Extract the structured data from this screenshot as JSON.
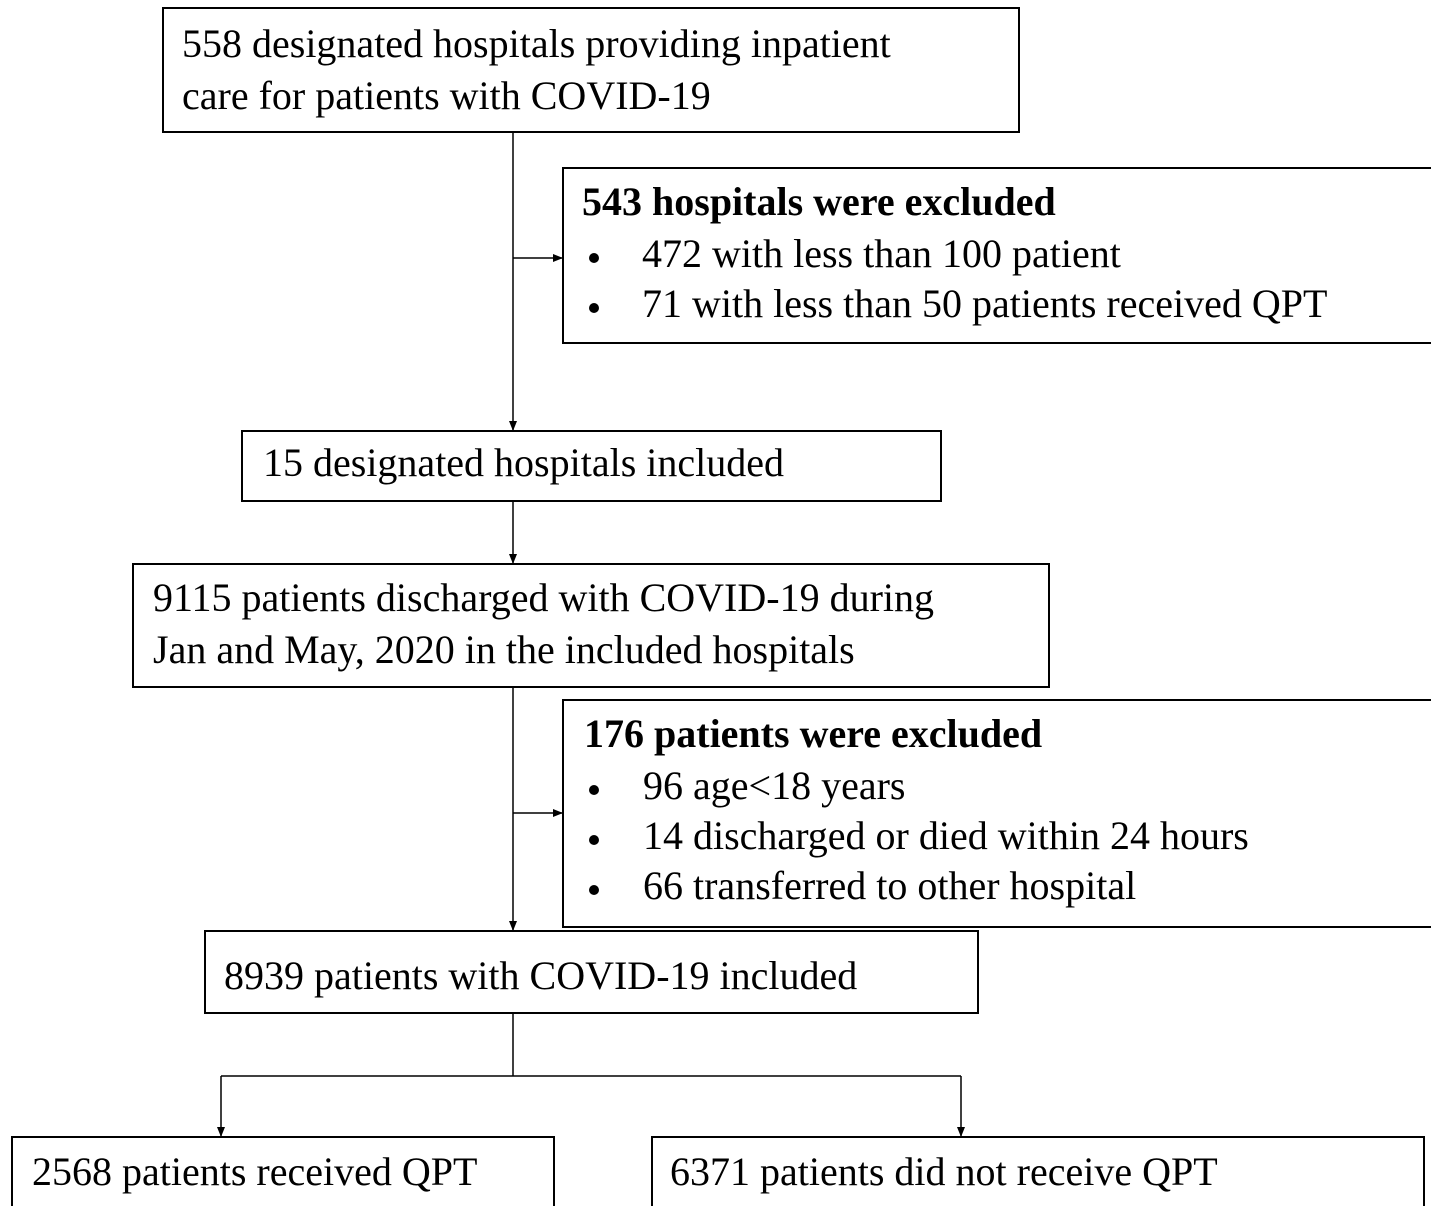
{
  "nodes": [
    {
      "lines": [
        "558 designated hospitals providing inpatient",
        "care for patients with COVID-19"
      ]
    },
    {
      "title": "543 hospitals were excluded",
      "items": [
        "472 with less than 100 patient",
        "71 with less than 50 patients received QPT"
      ]
    },
    {
      "lines": [
        "15 designated hospitals included"
      ]
    },
    {
      "lines": [
        "9115 patients discharged with COVID-19 during",
        "Jan and May, 2020 in the included hospitals"
      ]
    },
    {
      "title": "176 patients were excluded",
      "items": [
        "96 age<18 years",
        "14 discharged or died within 24 hours",
        "66 transferred to other hospital"
      ]
    },
    {
      "lines": [
        "8939 patients with COVID-19 included"
      ]
    },
    {
      "lines": [
        "2568 patients received QPT"
      ]
    },
    {
      "lines": [
        "6371 patients did not receive QPT"
      ]
    }
  ]
}
